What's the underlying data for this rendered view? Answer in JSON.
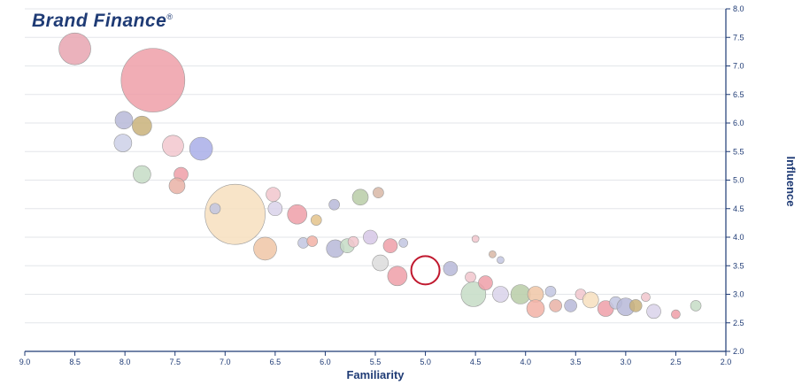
{
  "brand": {
    "name": "Brand Finance",
    "mark": "®"
  },
  "chart_data": {
    "type": "scatter",
    "xlabel": "Familiarity",
    "ylabel": "Influence",
    "x_reversed": true,
    "x_ticks": [
      "9.0",
      "8.5",
      "8.0",
      "7.5",
      "7.0",
      "6.5",
      "6.0",
      "5.5",
      "5.0",
      "4.5",
      "4.0",
      "3.5",
      "3.0",
      "2.5",
      "2.0"
    ],
    "y_ticks": [
      "2.0",
      "2.5",
      "3.0",
      "3.5",
      "4.0",
      "4.5",
      "5.0",
      "5.5",
      "6.0",
      "6.5",
      "7.0",
      "7.5",
      "8.0"
    ],
    "xlim": [
      2.0,
      9.0
    ],
    "ylim": [
      2.0,
      8.0
    ],
    "grid": true,
    "axis_color": "#1f3b75",
    "grid_color": "#e3e6ea",
    "points": [
      {
        "x": 8.5,
        "y": 7.3,
        "size": 18,
        "color": "#e8a5b0"
      },
      {
        "x": 7.72,
        "y": 6.75,
        "size": 36,
        "color": "#ee9fa8"
      },
      {
        "x": 8.01,
        "y": 6.05,
        "size": 10,
        "color": "#b7b9d8"
      },
      {
        "x": 7.83,
        "y": 5.95,
        "size": 11,
        "color": "#c9b27a"
      },
      {
        "x": 8.02,
        "y": 5.65,
        "size": 10,
        "color": "#cdd0e8"
      },
      {
        "x": 7.52,
        "y": 5.6,
        "size": 12,
        "color": "#f2c7ce"
      },
      {
        "x": 7.24,
        "y": 5.55,
        "size": 13,
        "color": "#a9aee8"
      },
      {
        "x": 7.83,
        "y": 5.1,
        "size": 10,
        "color": "#c6dcc6"
      },
      {
        "x": 7.44,
        "y": 5.1,
        "size": 8,
        "color": "#ee9fa8"
      },
      {
        "x": 7.48,
        "y": 4.9,
        "size": 9,
        "color": "#e9b2a6"
      },
      {
        "x": 6.9,
        "y": 4.4,
        "size": 34,
        "color": "#f7dfbe"
      },
      {
        "x": 6.52,
        "y": 4.75,
        "size": 8,
        "color": "#f1c6cc"
      },
      {
        "x": 7.1,
        "y": 4.5,
        "size": 6,
        "color": "#c2c6e1"
      },
      {
        "x": 6.5,
        "y": 4.5,
        "size": 8,
        "color": "#d9d2ea"
      },
      {
        "x": 6.28,
        "y": 4.4,
        "size": 11,
        "color": "#ee9fa8"
      },
      {
        "x": 6.09,
        "y": 4.3,
        "size": 6,
        "color": "#e4c38b"
      },
      {
        "x": 5.91,
        "y": 4.57,
        "size": 6,
        "color": "#b7b9d8"
      },
      {
        "x": 5.65,
        "y": 4.7,
        "size": 9,
        "color": "#b8cda7"
      },
      {
        "x": 5.47,
        "y": 4.78,
        "size": 6,
        "color": "#d8b7a6"
      },
      {
        "x": 6.6,
        "y": 3.8,
        "size": 13,
        "color": "#f0c6a6"
      },
      {
        "x": 6.22,
        "y": 3.9,
        "size": 6,
        "color": "#c2c6e1"
      },
      {
        "x": 6.13,
        "y": 3.93,
        "size": 6,
        "color": "#f2b2a6"
      },
      {
        "x": 5.9,
        "y": 3.8,
        "size": 10,
        "color": "#b7b9d8"
      },
      {
        "x": 5.78,
        "y": 3.85,
        "size": 8,
        "color": "#c6dcc6"
      },
      {
        "x": 5.72,
        "y": 3.92,
        "size": 6,
        "color": "#f1c6cc"
      },
      {
        "x": 5.55,
        "y": 4.0,
        "size": 8,
        "color": "#d6c7e6"
      },
      {
        "x": 5.35,
        "y": 3.85,
        "size": 8,
        "color": "#ee9fa8"
      },
      {
        "x": 5.22,
        "y": 3.9,
        "size": 5,
        "color": "#c2c6e1"
      },
      {
        "x": 5.45,
        "y": 3.55,
        "size": 9,
        "color": "#dcdcdc"
      },
      {
        "x": 5.28,
        "y": 3.32,
        "size": 11,
        "color": "#ee9fa8"
      },
      {
        "x": 5.0,
        "y": 3.42,
        "size": 16,
        "color": "#ffffff",
        "stroke": "#c0182e"
      },
      {
        "x": 4.75,
        "y": 3.45,
        "size": 8,
        "color": "#b7b9d8"
      },
      {
        "x": 4.55,
        "y": 3.3,
        "size": 6,
        "color": "#f1c6cc"
      },
      {
        "x": 4.52,
        "y": 3.0,
        "size": 14,
        "color": "#c6dcc6"
      },
      {
        "x": 4.4,
        "y": 3.2,
        "size": 8,
        "color": "#ee9fa8"
      },
      {
        "x": 4.25,
        "y": 3.0,
        "size": 9,
        "color": "#d9d2ea"
      },
      {
        "x": 4.05,
        "y": 3.0,
        "size": 11,
        "color": "#b8cda7"
      },
      {
        "x": 3.9,
        "y": 3.0,
        "size": 9,
        "color": "#f0c6a6"
      },
      {
        "x": 3.9,
        "y": 2.75,
        "size": 10,
        "color": "#f2b2a6"
      },
      {
        "x": 3.75,
        "y": 3.05,
        "size": 6,
        "color": "#c2c6e1"
      },
      {
        "x": 3.7,
        "y": 2.8,
        "size": 7,
        "color": "#e9b2a6"
      },
      {
        "x": 3.55,
        "y": 2.8,
        "size": 7,
        "color": "#b7b9d8"
      },
      {
        "x": 3.45,
        "y": 3.0,
        "size": 6,
        "color": "#f1c6cc"
      },
      {
        "x": 3.35,
        "y": 2.9,
        "size": 9,
        "color": "#f7dfbe"
      },
      {
        "x": 3.2,
        "y": 2.75,
        "size": 9,
        "color": "#ee9fa8"
      },
      {
        "x": 3.1,
        "y": 2.85,
        "size": 7,
        "color": "#c2c6e1"
      },
      {
        "x": 3.0,
        "y": 2.78,
        "size": 10,
        "color": "#b7b9d8"
      },
      {
        "x": 2.9,
        "y": 2.8,
        "size": 7,
        "color": "#c9b27a"
      },
      {
        "x": 2.8,
        "y": 2.95,
        "size": 5,
        "color": "#f1c6cc"
      },
      {
        "x": 2.72,
        "y": 2.7,
        "size": 8,
        "color": "#d9d2ea"
      },
      {
        "x": 2.5,
        "y": 2.65,
        "size": 5,
        "color": "#ee9fa8"
      },
      {
        "x": 2.3,
        "y": 2.8,
        "size": 6,
        "color": "#c6dcc6"
      },
      {
        "x": 4.5,
        "y": 3.97,
        "size": 4,
        "color": "#f1c6cc"
      },
      {
        "x": 4.33,
        "y": 3.7,
        "size": 4,
        "color": "#d8b7a6"
      },
      {
        "x": 4.25,
        "y": 3.6,
        "size": 4,
        "color": "#c2c6e1"
      }
    ]
  }
}
